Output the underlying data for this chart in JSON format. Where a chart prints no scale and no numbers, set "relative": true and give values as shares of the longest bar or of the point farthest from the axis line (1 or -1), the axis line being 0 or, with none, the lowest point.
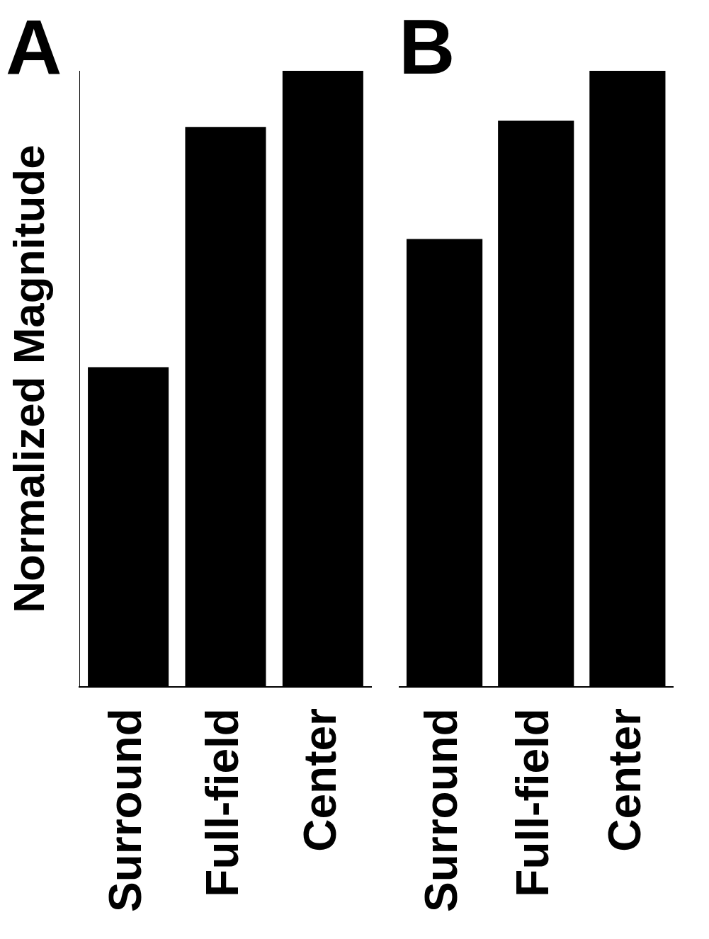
{
  "chart_data": [
    {
      "type": "bar",
      "title": "A",
      "ylabel": "Normalized Magnitude",
      "categories": [
        "Surround",
        "Full-field",
        "Center"
      ],
      "values": [
        0.519,
        0.909,
        1
      ],
      "color": "#000000",
      "relative": true,
      "tick_labels": "x",
      "grid": false,
      "legend": false
    },
    {
      "type": "bar",
      "title": "B",
      "categories": [
        "Surround",
        "Full-field",
        "Center"
      ],
      "values": [
        0.727,
        0.919,
        1
      ],
      "color": "#000000",
      "relative": true,
      "tick_labels": "x",
      "grid": false,
      "legend": false
    }
  ]
}
